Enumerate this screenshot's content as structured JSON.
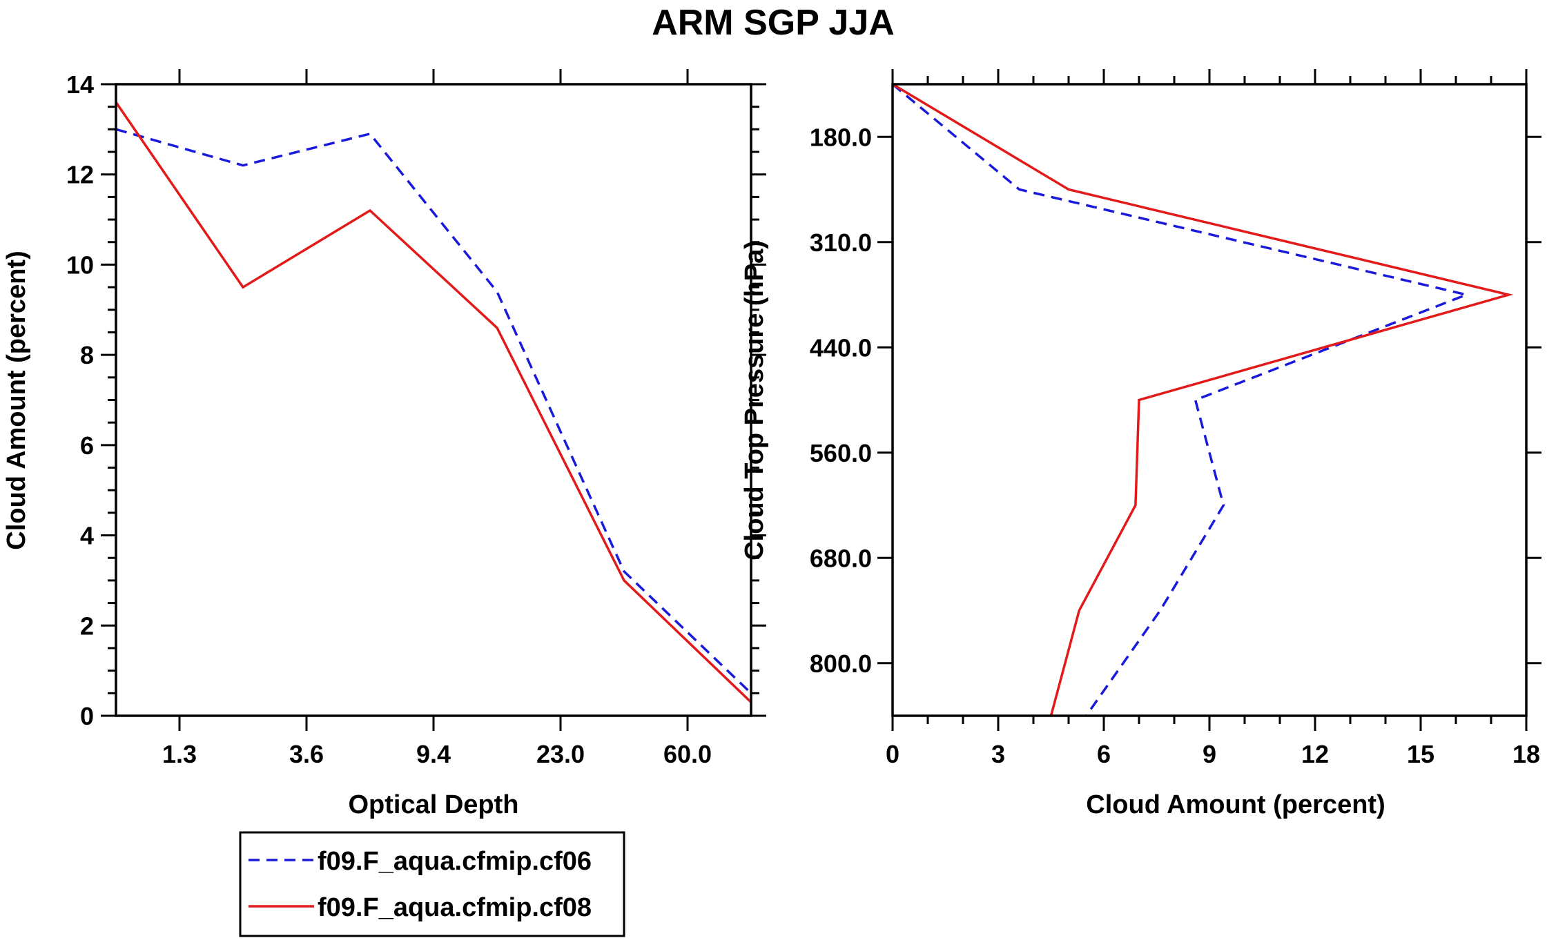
{
  "title": "ARM SGP JJA",
  "legend": {
    "entries": [
      {
        "name": "f09.F_aqua.cfmip.cf06",
        "color": "#1a1adb",
        "dash": true
      },
      {
        "name": "f09.F_aqua.cfmip.cf08",
        "color": "#e31a1a",
        "dash": false
      }
    ]
  },
  "chart_data": [
    {
      "type": "line",
      "xlabel": "Optical Depth",
      "ylabel": "Cloud Amount (percent)",
      "x_bins": [
        0,
        1,
        2,
        3,
        4,
        5,
        6
      ],
      "x_tick_positions": [
        0.5,
        1.5,
        2.5,
        3.5,
        4.5
      ],
      "x_tick_labels": [
        "1.3",
        "3.6",
        "9.4",
        "23.0",
        "60.0"
      ],
      "xlim": [
        0,
        5
      ],
      "ylim": [
        0,
        14
      ],
      "y_ticks": [
        0,
        2,
        4,
        6,
        8,
        10,
        12,
        14
      ],
      "y_tick_labels": [
        "0",
        "2",
        "4",
        "6",
        "8",
        "10",
        "12",
        "14"
      ],
      "series": [
        {
          "name": "f09.F_aqua.cfmip.cf06",
          "color": "#1a1adb",
          "dash": true,
          "x": [
            0,
            1,
            2,
            3,
            4,
            5
          ],
          "values": [
            13.0,
            12.2,
            12.9,
            9.4,
            3.2,
            0.5
          ]
        },
        {
          "name": "f09.F_aqua.cfmip.cf08",
          "color": "#e31a1a",
          "dash": false,
          "x": [
            0,
            1,
            2,
            3,
            4,
            5
          ],
          "values": [
            13.6,
            9.5,
            11.2,
            8.6,
            3.0,
            0.3
          ]
        }
      ]
    },
    {
      "type": "line",
      "xlabel": "Cloud Amount (percent)",
      "ylabel": "Cloud Top Pressure (hPa)",
      "xlim": [
        0,
        18
      ],
      "x_ticks": [
        0,
        3,
        6,
        9,
        12,
        15,
        18
      ],
      "x_tick_labels": [
        "0",
        "3",
        "6",
        "9",
        "12",
        "15",
        "18"
      ],
      "ylim": [
        120,
        840
      ],
      "y_ticks": [
        180,
        300,
        420,
        540,
        660,
        780
      ],
      "y_tick_labels": [
        "180.0",
        "310.0",
        "440.0",
        "560.0",
        "680.0",
        "800.0"
      ],
      "series": [
        {
          "name": "f09.F_aqua.cfmip.cf06",
          "color": "#1a1adb",
          "dash": true,
          "pressure": [
            120,
            240,
            360,
            480,
            600,
            720,
            840
          ],
          "values": [
            0.0,
            3.6,
            16.3,
            8.6,
            9.4,
            7.6,
            5.5
          ]
        },
        {
          "name": "f09.F_aqua.cfmip.cf08",
          "color": "#e31a1a",
          "dash": false,
          "pressure": [
            120,
            240,
            360,
            480,
            600,
            720,
            840
          ],
          "values": [
            0.0,
            5.0,
            17.5,
            7.0,
            6.9,
            5.3,
            4.5
          ]
        }
      ]
    }
  ]
}
